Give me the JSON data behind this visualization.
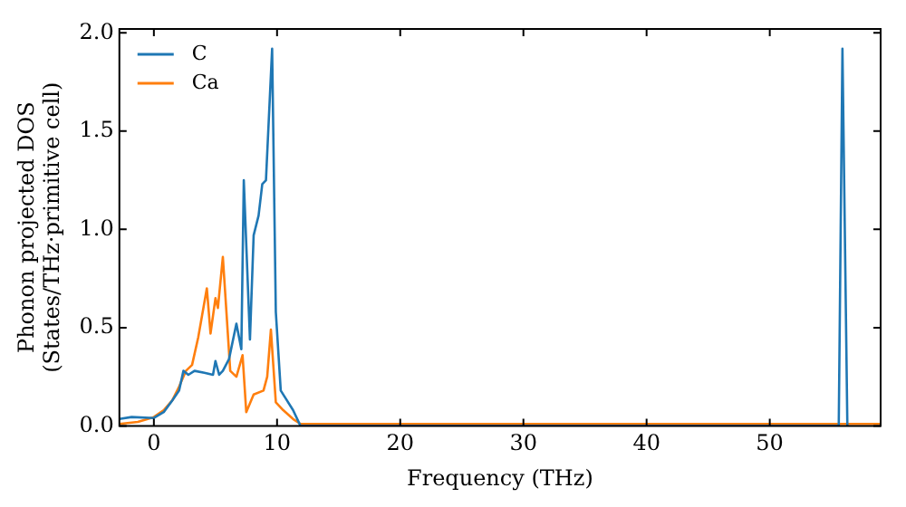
{
  "chart_data": {
    "type": "line",
    "xlabel": "Frequency (THz)",
    "ylabel": "Phonon projected DOS\n(States/THz·primitive cell)",
    "xlim": [
      -2.8,
      59
    ],
    "ylim": [
      0,
      2.02
    ],
    "xticks": [
      0,
      10,
      20,
      30,
      40,
      50
    ],
    "yticks": [
      {
        "value": 0,
        "label": "0.0"
      },
      {
        "value": 0.5,
        "label": "0.5"
      },
      {
        "value": 1,
        "label": "1.0"
      },
      {
        "value": 1.5,
        "label": "1.5"
      },
      {
        "value": 2,
        "label": "2.0"
      }
    ],
    "legend": "top left",
    "grid": false,
    "marker": "none",
    "line_style": "solid",
    "series": [
      {
        "name": "C",
        "color": "#1f77b4",
        "x": [
          -2.8,
          -1.8,
          0,
          0.8,
          1.5,
          2.05,
          2.4,
          2.8,
          3.3,
          4.1,
          4.8,
          5.0,
          5.3,
          5.6,
          6.1,
          6.7,
          7.1,
          7.3,
          7.8,
          8.1,
          8.5,
          8.8,
          9.1,
          9.6,
          9.9,
          10.3,
          10.6,
          11.3,
          11.9,
          55.6,
          55.9,
          56.3
        ],
        "values": [
          0.035,
          0.045,
          0.04,
          0.07,
          0.13,
          0.18,
          0.28,
          0.26,
          0.28,
          0.27,
          0.26,
          0.33,
          0.26,
          0.28,
          0.34,
          0.52,
          0.39,
          1.25,
          0.44,
          0.97,
          1.07,
          1.23,
          1.25,
          1.92,
          0.58,
          0.18,
          0.15,
          0.08,
          0,
          0,
          1.92,
          0
        ]
      },
      {
        "name": "Ca",
        "color": "#ff7f0e",
        "x": [
          -2.8,
          -1.3,
          0,
          0.8,
          1.5,
          2.05,
          2.6,
          3.1,
          3.6,
          4.3,
          4.6,
          5.0,
          5.2,
          5.6,
          6.2,
          6.7,
          7.2,
          7.5,
          8.1,
          8.9,
          9.2,
          9.5,
          9.9,
          10.5,
          11.3,
          11.9,
          59
        ],
        "values": [
          0.01,
          0.02,
          0.045,
          0.08,
          0.13,
          0.2,
          0.28,
          0.31,
          0.45,
          0.7,
          0.47,
          0.65,
          0.6,
          0.86,
          0.28,
          0.25,
          0.36,
          0.07,
          0.16,
          0.18,
          0.25,
          0.49,
          0.12,
          0.08,
          0.035,
          0.01,
          0.01
        ]
      }
    ]
  }
}
